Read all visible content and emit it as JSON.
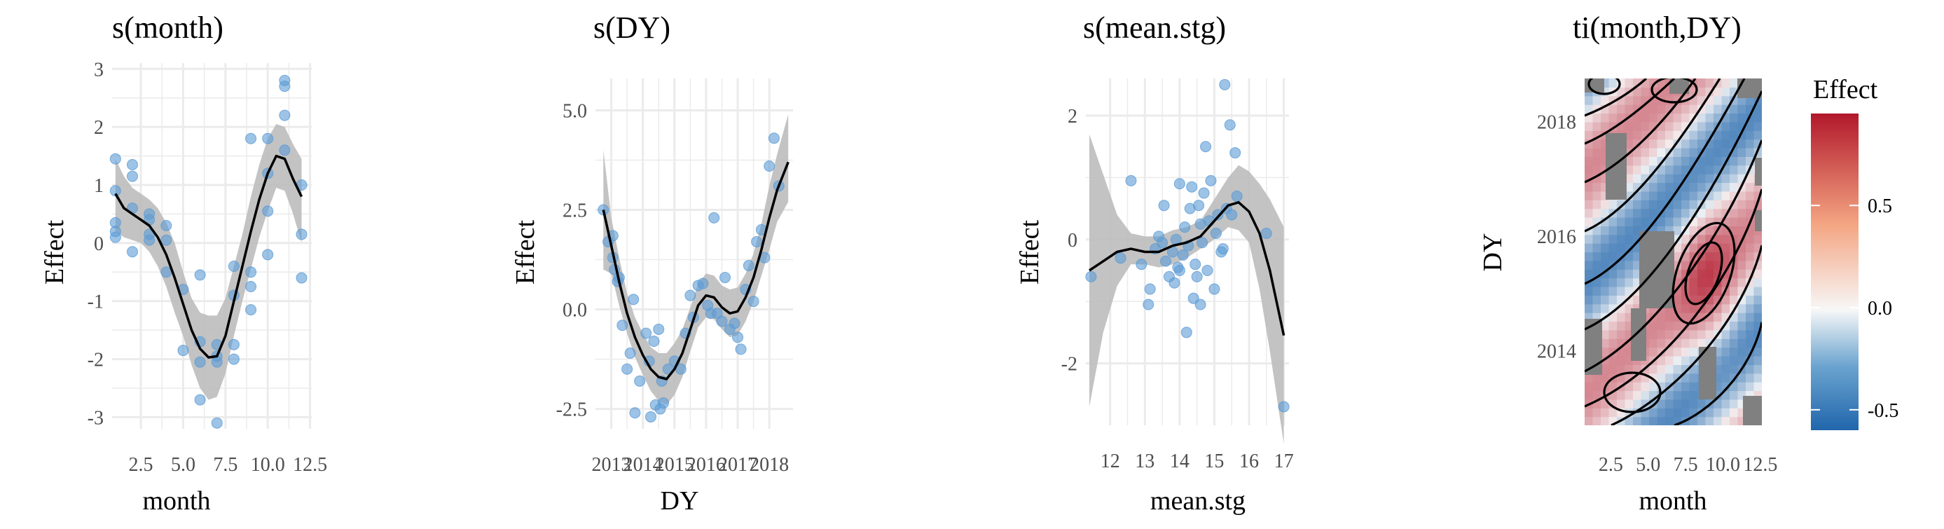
{
  "colors": {
    "points": "#5b9bd5",
    "ribbon": "#bdbdbd",
    "grid": "#ebebeb",
    "line": "#000000",
    "effect_low": "#2166ac",
    "effect_mid": "#f7f7f7",
    "effect_high": "#b2182b",
    "na_fill": "#808080"
  },
  "chart_data": [
    {
      "type": "line",
      "title": "s(month)",
      "xlabel": "month",
      "ylabel": "Effect",
      "xlim": [
        0.8,
        12.6
      ],
      "ylim": [
        -3.2,
        3.1
      ],
      "xticks": [
        2.5,
        5.0,
        7.5,
        10.0,
        12.5
      ],
      "xtick_labels": [
        "2.5",
        "5.0",
        "7.5",
        "10.0",
        "12.5"
      ],
      "yticks": [
        -3,
        -2,
        -1,
        0,
        1,
        2,
        3
      ],
      "ytick_labels": [
        "-3",
        "-2",
        "-1",
        "0",
        "1",
        "2",
        "3"
      ],
      "smooth": {
        "x": [
          1,
          1.5,
          2,
          2.5,
          3,
          3.5,
          4,
          4.5,
          5,
          5.5,
          6,
          6.5,
          7,
          7.5,
          8,
          8.5,
          9,
          9.5,
          10,
          10.5,
          11,
          11.5,
          12
        ],
        "y": [
          0.85,
          0.6,
          0.5,
          0.4,
          0.3,
          0.1,
          -0.2,
          -0.6,
          -1.05,
          -1.5,
          -1.82,
          -1.97,
          -1.95,
          -1.6,
          -1.0,
          -0.4,
          0.2,
          0.75,
          1.2,
          1.5,
          1.45,
          1.1,
          0.8
        ],
        "lower": [
          0.2,
          0.1,
          0.05,
          0.0,
          -0.15,
          -0.4,
          -0.75,
          -1.2,
          -1.6,
          -2.1,
          -2.5,
          -2.7,
          -2.65,
          -2.25,
          -1.6,
          -1.0,
          -0.45,
          0.1,
          0.55,
          0.95,
          0.9,
          0.5,
          0.0
        ],
        "upper": [
          1.45,
          1.15,
          0.95,
          0.85,
          0.75,
          0.6,
          0.35,
          0.0,
          -0.5,
          -0.95,
          -1.2,
          -1.25,
          -1.25,
          -0.95,
          -0.4,
          0.15,
          0.8,
          1.35,
          1.8,
          2.05,
          2.0,
          1.7,
          1.45
        ]
      },
      "points": [
        {
          "x": 1,
          "y": 1.45
        },
        {
          "x": 1,
          "y": 0.9
        },
        {
          "x": 1,
          "y": 0.35
        },
        {
          "x": 1,
          "y": 0.2
        },
        {
          "x": 1,
          "y": 0.1
        },
        {
          "x": 2,
          "y": 1.35
        },
        {
          "x": 2,
          "y": 1.15
        },
        {
          "x": 2,
          "y": 0.6
        },
        {
          "x": 2,
          "y": -0.15
        },
        {
          "x": 3,
          "y": 0.5
        },
        {
          "x": 3,
          "y": 0.4
        },
        {
          "x": 3,
          "y": 0.15
        },
        {
          "x": 3,
          "y": 0.05
        },
        {
          "x": 4,
          "y": 0.3
        },
        {
          "x": 4,
          "y": 0.05
        },
        {
          "x": 4,
          "y": -0.5
        },
        {
          "x": 5,
          "y": -0.8
        },
        {
          "x": 5,
          "y": -1.85
        },
        {
          "x": 6,
          "y": -0.55
        },
        {
          "x": 6,
          "y": -1.7
        },
        {
          "x": 6,
          "y": -2.05
        },
        {
          "x": 6,
          "y": -2.7
        },
        {
          "x": 7,
          "y": -1.75
        },
        {
          "x": 7,
          "y": -1.95
        },
        {
          "x": 7,
          "y": -2.05
        },
        {
          "x": 7,
          "y": -3.1
        },
        {
          "x": 8,
          "y": -0.4
        },
        {
          "x": 8,
          "y": -0.9
        },
        {
          "x": 8,
          "y": -1.75
        },
        {
          "x": 8,
          "y": -2.0
        },
        {
          "x": 9,
          "y": 1.8
        },
        {
          "x": 9,
          "y": -0.5
        },
        {
          "x": 9,
          "y": -0.75
        },
        {
          "x": 9,
          "y": -1.15
        },
        {
          "x": 10,
          "y": 1.8
        },
        {
          "x": 10,
          "y": 1.2
        },
        {
          "x": 10,
          "y": 0.55
        },
        {
          "x": 10,
          "y": -0.2
        },
        {
          "x": 11,
          "y": 2.8
        },
        {
          "x": 11,
          "y": 2.7
        },
        {
          "x": 11,
          "y": 2.2
        },
        {
          "x": 11,
          "y": 1.6
        },
        {
          "x": 12,
          "y": 1.0
        },
        {
          "x": 12,
          "y": 0.15
        },
        {
          "x": 12,
          "y": -0.6
        }
      ]
    },
    {
      "type": "line",
      "title": "s(DY)",
      "xlabel": "DY",
      "ylabel": "Effect",
      "xlim": [
        2012.5,
        2018.75
      ],
      "ylim": [
        -3.0,
        5.8
      ],
      "xticks": [
        2013,
        2014,
        2015,
        2016,
        2017,
        2018
      ],
      "xtick_labels": [
        "2013",
        "2014",
        "2015",
        "2016",
        "2017",
        "2018"
      ],
      "yticks": [
        -2.5,
        0.0,
        2.5,
        5.0
      ],
      "ytick_labels": [
        "-2.5",
        "0.0",
        "2.5",
        "5.0"
      ],
      "smooth": {
        "x": [
          2012.75,
          2013,
          2013.25,
          2013.5,
          2013.75,
          2014,
          2014.25,
          2014.5,
          2014.75,
          2015,
          2015.25,
          2015.5,
          2015.75,
          2016,
          2016.25,
          2016.5,
          2016.75,
          2017,
          2017.25,
          2017.5,
          2017.75,
          2018,
          2018.25,
          2018.6
        ],
        "y": [
          2.5,
          1.6,
          0.7,
          -0.1,
          -0.7,
          -1.15,
          -1.5,
          -1.7,
          -1.75,
          -1.5,
          -1.1,
          -0.5,
          0.1,
          0.35,
          0.3,
          0.05,
          -0.1,
          -0.05,
          0.3,
          0.8,
          1.5,
          2.3,
          3.0,
          3.7
        ],
        "lower": [
          1.0,
          0.9,
          0.1,
          -0.6,
          -1.2,
          -1.65,
          -2.05,
          -2.3,
          -2.4,
          -2.15,
          -1.7,
          -1.05,
          -0.45,
          -0.2,
          -0.25,
          -0.5,
          -0.7,
          -0.65,
          -0.3,
          0.2,
          0.85,
          1.5,
          2.2,
          2.7
        ],
        "upper": [
          4.0,
          2.3,
          1.3,
          0.4,
          -0.2,
          -0.6,
          -0.95,
          -1.1,
          -1.1,
          -0.85,
          -0.5,
          0.05,
          0.65,
          0.9,
          0.85,
          0.6,
          0.5,
          0.55,
          0.9,
          1.4,
          2.15,
          3.1,
          3.9,
          4.9
        ]
      },
      "points": [
        {
          "x": 2012.75,
          "y": 2.5
        },
        {
          "x": 2012.9,
          "y": 1.7
        },
        {
          "x": 2013.05,
          "y": 1.85
        },
        {
          "x": 2013.05,
          "y": 1.3
        },
        {
          "x": 2013.1,
          "y": 1.0
        },
        {
          "x": 2013.2,
          "y": 0.7
        },
        {
          "x": 2013.25,
          "y": 0.8
        },
        {
          "x": 2013.35,
          "y": -0.4
        },
        {
          "x": 2013.5,
          "y": -1.5
        },
        {
          "x": 2013.6,
          "y": -1.1
        },
        {
          "x": 2013.7,
          "y": 0.25
        },
        {
          "x": 2013.75,
          "y": -2.6
        },
        {
          "x": 2013.9,
          "y": -1.8
        },
        {
          "x": 2014.1,
          "y": -0.6
        },
        {
          "x": 2014.2,
          "y": -1.3
        },
        {
          "x": 2014.25,
          "y": -2.7
        },
        {
          "x": 2014.35,
          "y": -0.8
        },
        {
          "x": 2014.4,
          "y": -2.4
        },
        {
          "x": 2014.5,
          "y": -0.5
        },
        {
          "x": 2014.55,
          "y": -2.5
        },
        {
          "x": 2014.6,
          "y": -1.8
        },
        {
          "x": 2014.65,
          "y": -2.35
        },
        {
          "x": 2014.8,
          "y": -1.5
        },
        {
          "x": 2015.0,
          "y": -1.3
        },
        {
          "x": 2015.2,
          "y": -1.5
        },
        {
          "x": 2015.35,
          "y": -0.6
        },
        {
          "x": 2015.5,
          "y": 0.35
        },
        {
          "x": 2015.6,
          "y": -0.2
        },
        {
          "x": 2015.75,
          "y": 0.6
        },
        {
          "x": 2015.9,
          "y": 0.65
        },
        {
          "x": 2016.05,
          "y": 0.1
        },
        {
          "x": 2016.15,
          "y": -0.1
        },
        {
          "x": 2016.25,
          "y": 2.3
        },
        {
          "x": 2016.35,
          "y": -0.1
        },
        {
          "x": 2016.5,
          "y": -0.3
        },
        {
          "x": 2016.6,
          "y": 0.8
        },
        {
          "x": 2016.75,
          "y": -0.5
        },
        {
          "x": 2016.9,
          "y": -0.35
        },
        {
          "x": 2017.0,
          "y": -0.7
        },
        {
          "x": 2017.1,
          "y": -1.0
        },
        {
          "x": 2017.25,
          "y": 0.5
        },
        {
          "x": 2017.35,
          "y": 1.1
        },
        {
          "x": 2017.5,
          "y": 0.2
        },
        {
          "x": 2017.6,
          "y": 1.7
        },
        {
          "x": 2017.75,
          "y": 2.0
        },
        {
          "x": 2017.85,
          "y": 1.3
        },
        {
          "x": 2018.0,
          "y": 3.6
        },
        {
          "x": 2018.15,
          "y": 4.3
        },
        {
          "x": 2018.3,
          "y": 3.1
        }
      ]
    },
    {
      "type": "line",
      "title": "s(mean.stg)",
      "xlabel": "mean.stg",
      "ylabel": "Effect",
      "xlim": [
        11.3,
        17.15
      ],
      "ylim": [
        -3.0,
        2.6
      ],
      "xticks": [
        12,
        13,
        14,
        15,
        16,
        17
      ],
      "xtick_labels": [
        "12",
        "13",
        "14",
        "15",
        "16",
        "17"
      ],
      "yticks": [
        -2,
        0,
        2
      ],
      "ytick_labels": [
        "-2",
        "0",
        "2"
      ],
      "smooth": {
        "x": [
          11.4,
          11.8,
          12.2,
          12.6,
          13.0,
          13.4,
          13.8,
          14.2,
          14.6,
          15.0,
          15.4,
          15.7,
          16.0,
          16.3,
          16.6,
          17.0
        ],
        "y": [
          -0.5,
          -0.35,
          -0.2,
          -0.15,
          -0.2,
          -0.2,
          -0.1,
          -0.05,
          0.05,
          0.3,
          0.55,
          0.6,
          0.45,
          0.1,
          -0.5,
          -1.55
        ],
        "lower": [
          -2.7,
          -1.5,
          -0.75,
          -0.4,
          -0.4,
          -0.45,
          -0.4,
          -0.3,
          -0.15,
          0.0,
          0.2,
          0.15,
          -0.05,
          -0.8,
          -1.8,
          -3.3
        ],
        "upper": [
          1.7,
          1.05,
          0.4,
          0.1,
          0.05,
          0.05,
          0.15,
          0.2,
          0.3,
          0.65,
          1.0,
          1.2,
          1.1,
          0.9,
          0.65,
          0.2
        ]
      },
      "points": [
        {
          "x": 11.45,
          "y": -0.6
        },
        {
          "x": 12.3,
          "y": -0.3
        },
        {
          "x": 12.6,
          "y": 0.95
        },
        {
          "x": 12.9,
          "y": -0.4
        },
        {
          "x": 13.1,
          "y": -1.05
        },
        {
          "x": 13.15,
          "y": -0.8
        },
        {
          "x": 13.3,
          "y": -0.15
        },
        {
          "x": 13.4,
          "y": 0.05
        },
        {
          "x": 13.5,
          "y": -0.05
        },
        {
          "x": 13.55,
          "y": 0.55
        },
        {
          "x": 13.6,
          "y": -0.35
        },
        {
          "x": 13.7,
          "y": -0.6
        },
        {
          "x": 13.8,
          "y": -0.2
        },
        {
          "x": 13.85,
          "y": -0.7
        },
        {
          "x": 13.9,
          "y": 0.0
        },
        {
          "x": 13.95,
          "y": -0.45
        },
        {
          "x": 14.0,
          "y": -0.5
        },
        {
          "x": 14.0,
          "y": 0.9
        },
        {
          "x": 14.1,
          "y": -0.25
        },
        {
          "x": 14.15,
          "y": 0.2
        },
        {
          "x": 14.2,
          "y": -1.5
        },
        {
          "x": 14.25,
          "y": -0.1
        },
        {
          "x": 14.3,
          "y": 0.5
        },
        {
          "x": 14.35,
          "y": 0.85
        },
        {
          "x": 14.4,
          "y": -0.95
        },
        {
          "x": 14.45,
          "y": -0.4
        },
        {
          "x": 14.5,
          "y": -0.6
        },
        {
          "x": 14.55,
          "y": 0.55
        },
        {
          "x": 14.6,
          "y": -1.05
        },
        {
          "x": 14.6,
          "y": 0.25
        },
        {
          "x": 14.65,
          "y": -0.05
        },
        {
          "x": 14.7,
          "y": 0.75
        },
        {
          "x": 14.75,
          "y": 1.5
        },
        {
          "x": 14.8,
          "y": -0.5
        },
        {
          "x": 14.85,
          "y": 0.3
        },
        {
          "x": 14.9,
          "y": 0.95
        },
        {
          "x": 15.0,
          "y": -0.8
        },
        {
          "x": 15.05,
          "y": 0.1
        },
        {
          "x": 15.1,
          "y": 0.4
        },
        {
          "x": 15.2,
          "y": -0.2
        },
        {
          "x": 15.25,
          "y": -0.15
        },
        {
          "x": 15.3,
          "y": 2.5
        },
        {
          "x": 15.35,
          "y": 0.5
        },
        {
          "x": 15.45,
          "y": 1.85
        },
        {
          "x": 15.5,
          "y": 0.4
        },
        {
          "x": 15.6,
          "y": 1.4
        },
        {
          "x": 15.65,
          "y": 0.7
        },
        {
          "x": 16.5,
          "y": 0.1
        },
        {
          "x": 17.0,
          "y": -2.7
        }
      ]
    },
    {
      "type": "heatmap",
      "title": "ti(month,DY)",
      "xlabel": "month",
      "ylabel": "DY",
      "xlim": [
        0.75,
        12.6
      ],
      "ylim": [
        2012.7,
        2018.75
      ],
      "xticks": [
        2.5,
        5.0,
        7.5,
        10.0,
        12.5
      ],
      "xtick_labels": [
        "2.5",
        "5.0",
        "7.5",
        "10.0",
        "12.5"
      ],
      "yticks": [
        2014,
        2016,
        2018
      ],
      "ytick_labels": [
        "2014",
        "2016",
        "2018"
      ],
      "legend": {
        "title": "Effect",
        "position": "right",
        "range": [
          -0.6,
          0.95
        ],
        "ticks": [
          -0.5,
          0.0,
          0.5
        ],
        "tick_labels": [
          "-0.5",
          "0.0",
          "0.5"
        ]
      },
      "surface_description": "Alternating diagonal bands: positive ridge upper-left and center-right (peak ~0.6 near month 9, DY 2015.2), negative band along lower-left to upper-right, with grey NA patches."
    }
  ]
}
